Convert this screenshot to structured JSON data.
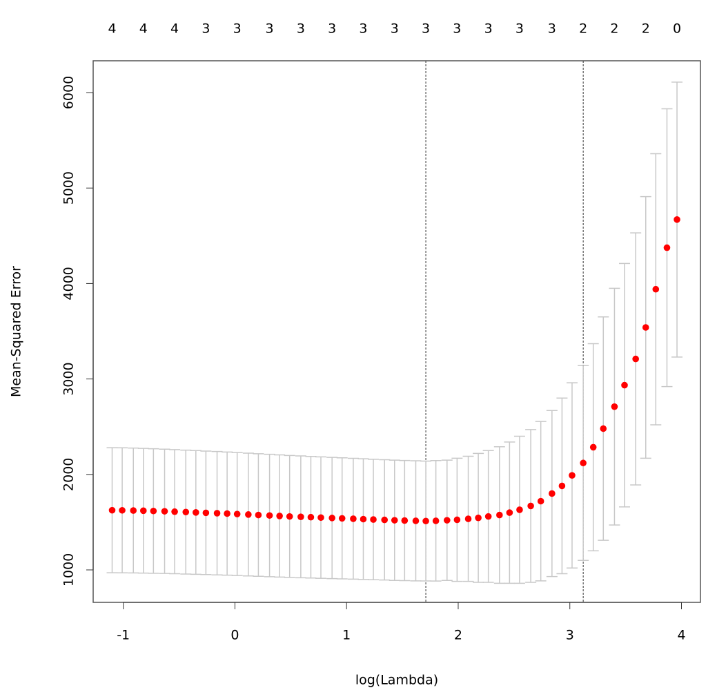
{
  "chart_data": {
    "type": "errorbar",
    "xlabel": "log(Lambda)",
    "ylabel": "Mean-Squared Error",
    "x": [
      -1.1,
      -1.01,
      -0.91,
      -0.82,
      -0.73,
      -0.63,
      -0.54,
      -0.44,
      -0.35,
      -0.26,
      -0.16,
      -0.07,
      0.02,
      0.12,
      0.21,
      0.31,
      0.4,
      0.49,
      0.59,
      0.68,
      0.77,
      0.87,
      0.96,
      1.06,
      1.15,
      1.24,
      1.34,
      1.43,
      1.52,
      1.62,
      1.71,
      1.8,
      1.9,
      1.99,
      2.09,
      2.18,
      2.27,
      2.37,
      2.46,
      2.55,
      2.65,
      2.74,
      2.84,
      2.93,
      3.02,
      3.12,
      3.21,
      3.3,
      3.4,
      3.49,
      3.59,
      3.68,
      3.77,
      3.87,
      3.96
    ],
    "values": [
      1625,
      1624,
      1622,
      1620,
      1617,
      1614,
      1610,
      1606,
      1602,
      1598,
      1594,
      1590,
      1585,
      1580,
      1575,
      1570,
      1565,
      1560,
      1556,
      1552,
      1548,
      1544,
      1540,
      1536,
      1532,
      1528,
      1524,
      1520,
      1517,
      1514,
      1512,
      1514,
      1520,
      1525,
      1535,
      1545,
      1560,
      1575,
      1600,
      1630,
      1670,
      1720,
      1800,
      1880,
      1990,
      2120,
      2285,
      2480,
      2710,
      2935,
      3210,
      3540,
      3940,
      4375,
      4670
    ],
    "errors": [
      655,
      655,
      654,
      653,
      652,
      651,
      650,
      649,
      648,
      647,
      646,
      645,
      644,
      643,
      642,
      641,
      640,
      639,
      638,
      637,
      636,
      635,
      634,
      633,
      632,
      631,
      630,
      630,
      629,
      629,
      628,
      631,
      630,
      645,
      655,
      675,
      690,
      715,
      740,
      770,
      800,
      835,
      870,
      920,
      970,
      1020,
      1085,
      1170,
      1240,
      1275,
      1320,
      1370,
      1420,
      1455,
      1440
    ],
    "color": "#ff0000",
    "error_color": "#c8c8c8",
    "xlim": [
      -1.27,
      4.17
    ],
    "ylim": [
      660,
      6333
    ],
    "xticks": [
      -1,
      0,
      1,
      2,
      3,
      4
    ],
    "yticks": [
      1000,
      2000,
      3000,
      4000,
      5000,
      6000
    ],
    "x2ticks": [
      {
        "value": -1.1,
        "label": "4"
      },
      {
        "value": -0.82,
        "label": "4"
      },
      {
        "value": -0.54,
        "label": "4"
      },
      {
        "value": -0.26,
        "label": "3"
      },
      {
        "value": 0.02,
        "label": "3"
      },
      {
        "value": 0.31,
        "label": "3"
      },
      {
        "value": 0.59,
        "label": "3"
      },
      {
        "value": 0.87,
        "label": "3"
      },
      {
        "value": 1.15,
        "label": "3"
      },
      {
        "value": 1.43,
        "label": "3"
      },
      {
        "value": 1.71,
        "label": "3"
      },
      {
        "value": 1.99,
        "label": "3"
      },
      {
        "value": 2.27,
        "label": "3"
      },
      {
        "value": 2.55,
        "label": "3"
      },
      {
        "value": 2.84,
        "label": "3"
      },
      {
        "value": 3.12,
        "label": "2"
      },
      {
        "value": 3.4,
        "label": "2"
      },
      {
        "value": 3.68,
        "label": "2"
      },
      {
        "value": 3.96,
        "label": "0"
      }
    ],
    "vlines": [
      1.71,
      3.12
    ]
  }
}
